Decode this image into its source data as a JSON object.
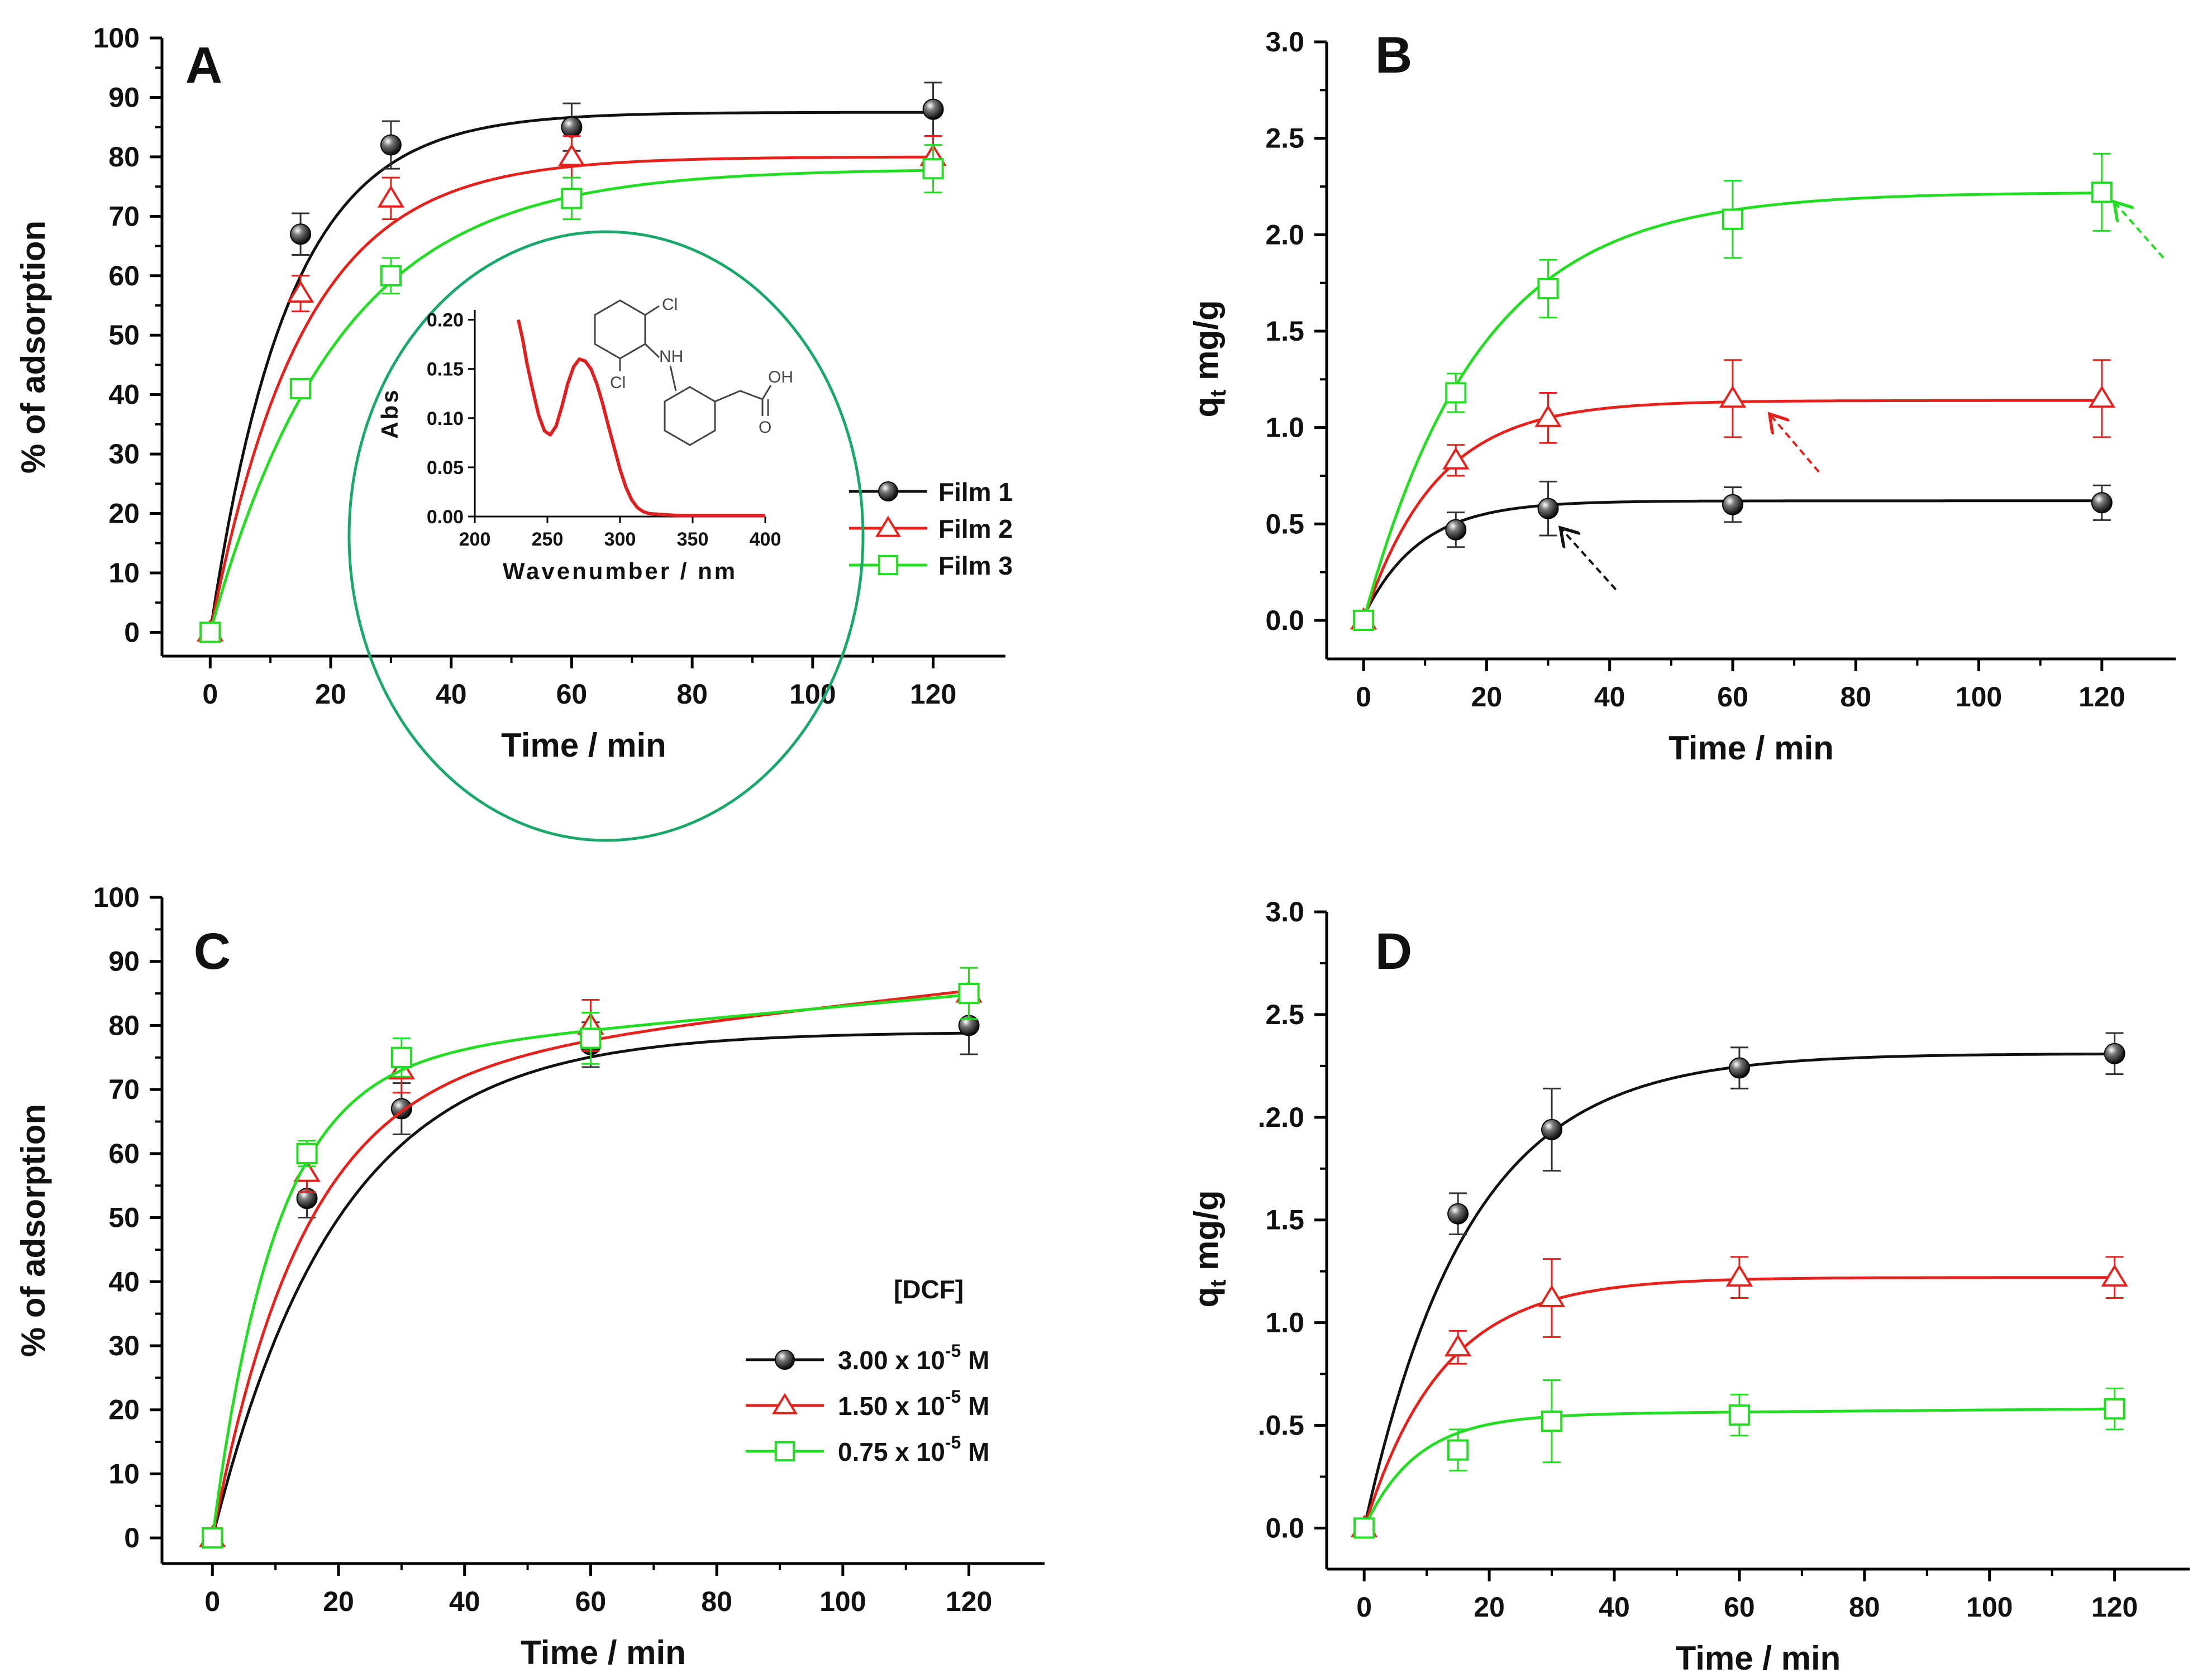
{
  "colors": {
    "film1": "#111111",
    "film2": "#e8201b",
    "film3": "#22dd22",
    "inset_curve": "#e02020",
    "inset_border": "#1aa86a"
  },
  "chart_data": [
    {
      "panel": "A",
      "type": "scatter",
      "xlabel": "Time / min",
      "ylabel": "% of adsorption",
      "xlim": [
        -8,
        132
      ],
      "ylim": [
        -4,
        100
      ],
      "xticks": [
        0,
        20,
        40,
        60,
        80,
        100,
        120
      ],
      "yticks": [
        0,
        10,
        20,
        30,
        40,
        50,
        60,
        70,
        80,
        90,
        100
      ],
      "legend": {
        "position": "right",
        "title": ""
      },
      "series": [
        {
          "name": "Film 1",
          "marker": "ball",
          "color": "#111111",
          "x": [
            0,
            15,
            30,
            60,
            120
          ],
          "y": [
            0,
            67,
            82,
            85,
            88
          ],
          "err": [
            0,
            3.5,
            4,
            4,
            4.5
          ],
          "fit": {
            "y0": 0,
            "A": 87.5,
            "k": 0.077
          }
        },
        {
          "name": "Film 2",
          "marker": "triangle",
          "color": "#e8201b",
          "x": [
            0,
            15,
            30,
            60,
            120
          ],
          "y": [
            0,
            57,
            73,
            80,
            80
          ],
          "err": [
            0,
            3,
            3.5,
            3.5,
            3.5
          ],
          "fit": {
            "y0": 0,
            "A": 80,
            "k": 0.065
          }
        },
        {
          "name": "Film 3",
          "marker": "square",
          "color": "#22dd22",
          "x": [
            0,
            15,
            30,
            60,
            120
          ],
          "y": [
            0,
            41,
            60,
            73,
            78
          ],
          "err": [
            0,
            1.5,
            3,
            3.5,
            4
          ],
          "fit": {
            "y0": 0,
            "A": 78,
            "k": 0.047
          }
        }
      ],
      "inset": {
        "type": "line",
        "xlabel": "Wavenumber / nm",
        "ylabel": "Abs",
        "xlim": [
          200,
          400
        ],
        "ylim": [
          0,
          0.21
        ],
        "xticks": [
          200,
          250,
          300,
          350,
          400
        ],
        "yticks": [
          0.0,
          0.05,
          0.1,
          0.15,
          0.2
        ],
        "xtick_labels": [
          "200",
          "250",
          "300",
          "350",
          "400"
        ],
        "ytick_labels": [
          "0.00",
          "0.05",
          "0.10",
          "0.15",
          "0.20"
        ],
        "x": [
          230,
          233,
          236,
          240,
          244,
          248,
          252,
          256,
          260,
          264,
          268,
          272,
          276,
          280,
          284,
          288,
          292,
          296,
          300,
          304,
          308,
          312,
          316,
          320,
          330,
          340,
          350,
          360,
          370,
          380,
          390,
          400
        ],
        "y": [
          0.2,
          0.18,
          0.155,
          0.128,
          0.103,
          0.087,
          0.083,
          0.092,
          0.112,
          0.135,
          0.152,
          0.16,
          0.158,
          0.15,
          0.135,
          0.115,
          0.092,
          0.07,
          0.048,
          0.03,
          0.017,
          0.009,
          0.005,
          0.003,
          0.002,
          0.001,
          0.001,
          0.001,
          0.001,
          0.001,
          0.001,
          0.001
        ],
        "molecule_labels": [
          "Cl",
          "NH",
          "Cl",
          "OH",
          "O"
        ]
      }
    },
    {
      "panel": "B",
      "type": "scatter",
      "xlabel": "Time / min",
      "ylabel_main": "q",
      "ylabel_sub": "t",
      "ylabel_rest": " mg/g",
      "xlim": [
        -6,
        132
      ],
      "ylim": [
        -0.2,
        3.0
      ],
      "xticks": [
        0,
        20,
        40,
        60,
        80,
        100,
        120
      ],
      "yticks": [
        0.0,
        0.5,
        1.0,
        1.5,
        2.0,
        2.5,
        3.0
      ],
      "ytick_labels": [
        "0.0",
        "0.5",
        "1.0",
        "1.5",
        "2.0",
        "2.5",
        "3.0"
      ],
      "series": [
        {
          "name": "Film 1",
          "marker": "ball",
          "color": "#111111",
          "x": [
            0,
            15,
            30,
            60,
            120
          ],
          "y": [
            0,
            0.47,
            0.58,
            0.6,
            0.61
          ],
          "err": [
            0,
            0.09,
            0.14,
            0.09,
            0.09
          ],
          "fit": {
            "y0": 0.02,
            "A": 0.6,
            "k": 0.11
          }
        },
        {
          "name": "Film 2",
          "marker": "triangle",
          "color": "#e8201b",
          "x": [
            0,
            15,
            30,
            60,
            120
          ],
          "y": [
            0,
            0.83,
            1.05,
            1.15,
            1.15
          ],
          "err": [
            0,
            0.08,
            0.13,
            0.2,
            0.2
          ],
          "fit": {
            "y0": 0,
            "A": 1.14,
            "k": 0.085
          }
        },
        {
          "name": "Film 3",
          "marker": "square",
          "color": "#22dd22",
          "x": [
            0,
            15,
            30,
            60,
            120
          ],
          "y": [
            0,
            1.18,
            1.72,
            2.08,
            2.22
          ],
          "err": [
            0,
            0.1,
            0.15,
            0.2,
            0.2
          ],
          "fit": {
            "y0": 0,
            "A": 2.22,
            "k": 0.053
          }
        }
      ],
      "arrows": [
        {
          "color": "#111111",
          "x_from": 41,
          "y_from": 0.16,
          "x_to": 32,
          "y_to": 0.48
        },
        {
          "color": "#e8201b",
          "x_from": 74,
          "y_from": 0.77,
          "x_to": 66,
          "y_to": 1.07
        },
        {
          "color": "#22dd22",
          "x_from": 130,
          "y_from": 1.88,
          "x_to": 122,
          "y_to": 2.17
        }
      ]
    },
    {
      "panel": "C",
      "type": "scatter",
      "xlabel": "Time / min",
      "ylabel": "% of adsorption",
      "xlim": [
        -8,
        132
      ],
      "ylim": [
        -4,
        100
      ],
      "xticks": [
        0,
        20,
        40,
        60,
        80,
        100,
        120
      ],
      "yticks": [
        0,
        10,
        20,
        30,
        40,
        50,
        60,
        70,
        80,
        90,
        100
      ],
      "legend": {
        "position": "lower-right",
        "title": "[DCF]"
      },
      "series": [
        {
          "name": "3.00 x 10",
          "exp": "-5",
          "unit": " M",
          "marker": "ball",
          "color": "#111111",
          "x": [
            0,
            15,
            30,
            60,
            120
          ],
          "y": [
            0,
            53,
            67,
            77,
            80
          ],
          "err": [
            0,
            3,
            4,
            3.5,
            4.5
          ],
          "fit": {
            "y0": 0,
            "A": 79,
            "k": 0.05
          }
        },
        {
          "name": "1.50 x 10",
          "exp": "-5",
          "unit": " M",
          "marker": "triangle",
          "color": "#e8201b",
          "x": [
            0,
            15,
            30,
            60,
            120
          ],
          "y": [
            0,
            57,
            73,
            80,
            85
          ],
          "err": [
            0,
            3,
            3.5,
            4,
            4
          ],
          "fit": {
            "y0": 0,
            "A": 72,
            "k": 0.07,
            "B": 0.112
          }
        },
        {
          "name": "0.75 x 10",
          "exp": "-5",
          "unit": " M",
          "marker": "square",
          "color": "#22dd22",
          "x": [
            0,
            15,
            30,
            60,
            120
          ],
          "y": [
            0,
            60,
            75,
            78,
            85
          ],
          "err": [
            0,
            2,
            3,
            4,
            4
          ],
          "fit": {
            "y0": 0,
            "A": 74,
            "k": 0.1,
            "B": 0.09
          }
        }
      ]
    },
    {
      "panel": "D",
      "type": "scatter",
      "xlabel": "Time / min",
      "ylabel_main": "q",
      "ylabel_sub": "t",
      "ylabel_rest": " mg/g",
      "xlim": [
        -6,
        132
      ],
      "ylim": [
        -0.2,
        3.0
      ],
      "xticks": [
        0,
        20,
        40,
        60,
        80,
        100,
        120
      ],
      "yticks": [
        0.0,
        0.5,
        1.0,
        1.5,
        2.0,
        2.5,
        3.0
      ],
      "ytick_labels": [
        "0.0",
        ".0.5",
        "1.0",
        "1.5",
        ".2.0",
        "2.5",
        "3.0"
      ],
      "series": [
        {
          "name": "3.00 x 10-5 M",
          "marker": "ball",
          "color": "#111111",
          "x": [
            0,
            15,
            30,
            60,
            120
          ],
          "y": [
            0,
            1.53,
            1.94,
            2.24,
            2.31
          ],
          "err": [
            0,
            0.1,
            0.2,
            0.1,
            0.1
          ],
          "fit": {
            "y0": 0,
            "A": 2.31,
            "k": 0.06
          }
        },
        {
          "name": "1.50 x 10-5 M",
          "marker": "triangle",
          "color": "#e8201b",
          "x": [
            0,
            15,
            30,
            60,
            120
          ],
          "y": [
            0,
            0.88,
            1.12,
            1.22,
            1.22
          ],
          "err": [
            0,
            0.08,
            0.19,
            0.1,
            0.1
          ],
          "fit": {
            "y0": 0,
            "A": 1.22,
            "k": 0.08
          }
        },
        {
          "name": "0.75 x 10-5 M",
          "marker": "square",
          "color": "#22dd22",
          "x": [
            0,
            15,
            30,
            60,
            120
          ],
          "y": [
            0,
            0.38,
            0.52,
            0.55,
            0.58
          ],
          "err": [
            0,
            0.1,
            0.2,
            0.1,
            0.1
          ],
          "fit": {
            "y0": 0,
            "A": 0.55,
            "k": 0.12,
            "B": 0.00025
          }
        }
      ]
    }
  ]
}
